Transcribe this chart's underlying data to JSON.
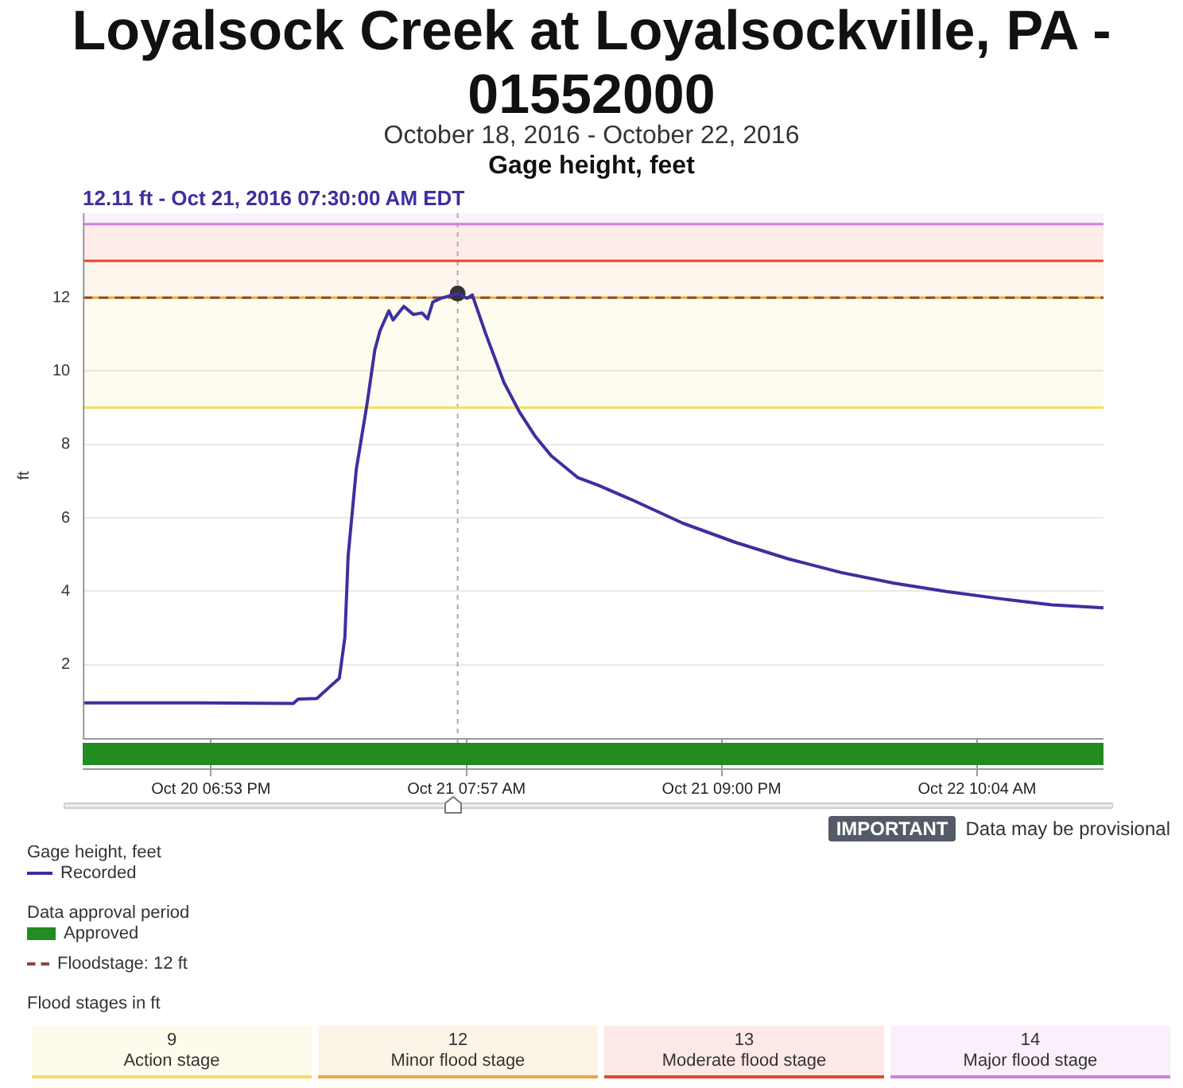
{
  "chart_data": {
    "type": "line",
    "title": "Loyalsock Creek at Loyalsockville, PA - 01552000",
    "subtitle": "October 18, 2016 - October 22, 2016",
    "legend_title": "Gage height, feet",
    "ylabel": "ft",
    "xlim": [
      "2016-10-20T12:20",
      "2016-10-22T16:32"
    ],
    "xticks": [
      {
        "value": "2016-10-20T18:53",
        "label": "Oct 20 06:53 PM"
      },
      {
        "value": "2016-10-21T07:57",
        "label": "Oct 21 07:57 AM"
      },
      {
        "value": "2016-10-21T21:00",
        "label": "Oct 21 09:00 PM"
      },
      {
        "value": "2016-10-22T10:04",
        "label": "Oct 22 10:04 AM"
      }
    ],
    "ylim": [
      0,
      14.3
    ],
    "yticks": [
      2,
      4,
      6,
      8,
      10,
      12
    ],
    "grid": "y",
    "legend": "bottom",
    "marker": "none",
    "line_style": "solid",
    "series": [
      {
        "name": "Recorded",
        "color": "#3d2fa0",
        "x": [
          "2016-10-20T12:20",
          "2016-10-20T18:00",
          "2016-10-20T23:05",
          "2016-10-20T23:21",
          "2016-10-21T00:18",
          "2016-10-21T00:58",
          "2016-10-21T01:27",
          "2016-10-21T01:44",
          "2016-10-21T01:54",
          "2016-10-21T02:19",
          "2016-10-21T02:52",
          "2016-10-21T03:16",
          "2016-10-21T03:32",
          "2016-10-21T03:59",
          "2016-10-21T04:12",
          "2016-10-21T04:45",
          "2016-10-21T05:14",
          "2016-10-21T05:41",
          "2016-10-21T05:58",
          "2016-10-21T06:14",
          "2016-10-21T06:38",
          "2016-10-21T07:30",
          "2016-10-21T07:59",
          "2016-10-21T08:15",
          "2016-10-21T08:56",
          "2016-10-21T09:52",
          "2016-10-21T10:40",
          "2016-10-21T11:29",
          "2016-10-21T12:17",
          "2016-10-21T13:38",
          "2016-10-21T14:43",
          "2016-10-21T16:20",
          "2016-10-21T19:02",
          "2016-10-21T21:43",
          "2016-10-22T00:25",
          "2016-10-22T03:07",
          "2016-10-22T05:49",
          "2016-10-22T08:30",
          "2016-10-22T11:12",
          "2016-10-22T13:53",
          "2016-10-22T16:32"
        ],
        "values": [
          0.96,
          0.96,
          0.94,
          1.06,
          1.08,
          1.4,
          1.63,
          2.74,
          4.96,
          7.32,
          9.1,
          10.58,
          11.1,
          11.64,
          11.39,
          11.76,
          11.54,
          11.58,
          11.42,
          11.88,
          11.98,
          12.11,
          11.98,
          12.07,
          11.02,
          9.69,
          8.88,
          8.21,
          7.69,
          7.1,
          6.88,
          6.51,
          5.85,
          5.33,
          4.88,
          4.51,
          4.22,
          3.99,
          3.8,
          3.63,
          3.55
        ]
      },
      {
        "type": "scatter",
        "marker": "circle",
        "color": "#333333",
        "x": [
          "2016-10-21T07:30"
        ],
        "values": [
          12.11
        ]
      }
    ],
    "bands": [
      {
        "axis": "y",
        "from": 9,
        "to": 12,
        "color": "#f5de62"
      },
      {
        "axis": "y",
        "from": 12,
        "to": 13,
        "color": "#f0a640"
      },
      {
        "axis": "y",
        "from": 13,
        "to": 14,
        "color": "#e8452c"
      },
      {
        "axis": "y",
        "from": 14,
        "to": 14.3,
        "color": "#d27ee0"
      }
    ],
    "ref_lines": [
      {
        "axis": "y",
        "value": 12,
        "label": "Floodstage:  12 ft",
        "color": "#8b4a3a",
        "line_style": "dashed"
      },
      {
        "axis": "y",
        "value": 9,
        "label": null,
        "color": "#f5de62",
        "line_style": "solid"
      },
      {
        "axis": "y",
        "value": 12,
        "label": null,
        "color": "#f0a640",
        "line_style": "solid"
      },
      {
        "axis": "y",
        "value": 13,
        "label": null,
        "color": "#e8452c",
        "line_style": "solid"
      },
      {
        "axis": "y",
        "value": 14,
        "label": null,
        "color": "#d27ee0",
        "line_style": "solid"
      },
      {
        "axis": "x",
        "value": "2016-10-21T07:30",
        "label": null,
        "color": "#aaaaaa",
        "line_style": "dashed"
      }
    ],
    "annotations": [
      "12.11 ft - Oct 21, 2016 07:30:00 AM EDT",
      "IMPORTANT",
      "Data may be provisional",
      "Data approval period",
      "Approved",
      "Flood stages in ft",
      "9",
      "Action stage",
      "12",
      "Minor flood stage",
      "13",
      "Moderate flood stage",
      "14",
      "Major flood stage"
    ]
  }
}
